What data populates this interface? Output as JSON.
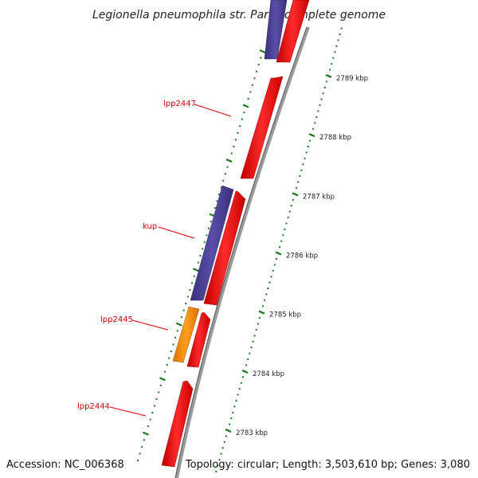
{
  "title": "Legionella pneumophila str. Paris, complete genome",
  "accession": "Accession: NC_006368",
  "topology": "Topology: circular; Length: 3,503,610 bp; Genes: 3,080",
  "colors": {
    "backbone": "#8c8c8c",
    "forward_gene": "#ff0000",
    "reverse_gene": "#4a3f8f",
    "rna_gene": "#ff8c00",
    "tick": "#1a7a1a",
    "label_line": "#e00000"
  },
  "scale": {
    "ticks": [
      {
        "kbp": 2789,
        "label": "2789 kbp"
      },
      {
        "kbp": 2788,
        "label": "2788 kbp"
      },
      {
        "kbp": 2787,
        "label": "2787 kbp"
      },
      {
        "kbp": 2786,
        "label": "2786 kbp"
      },
      {
        "kbp": 2785,
        "label": "2785 kbp"
      },
      {
        "kbp": 2784,
        "label": "2784 kbp"
      },
      {
        "kbp": 2783,
        "label": "2783 kbp"
      }
    ]
  },
  "gene_labels": [
    "lpp2447",
    "kup",
    "lpp2445",
    "lpp2444"
  ]
}
